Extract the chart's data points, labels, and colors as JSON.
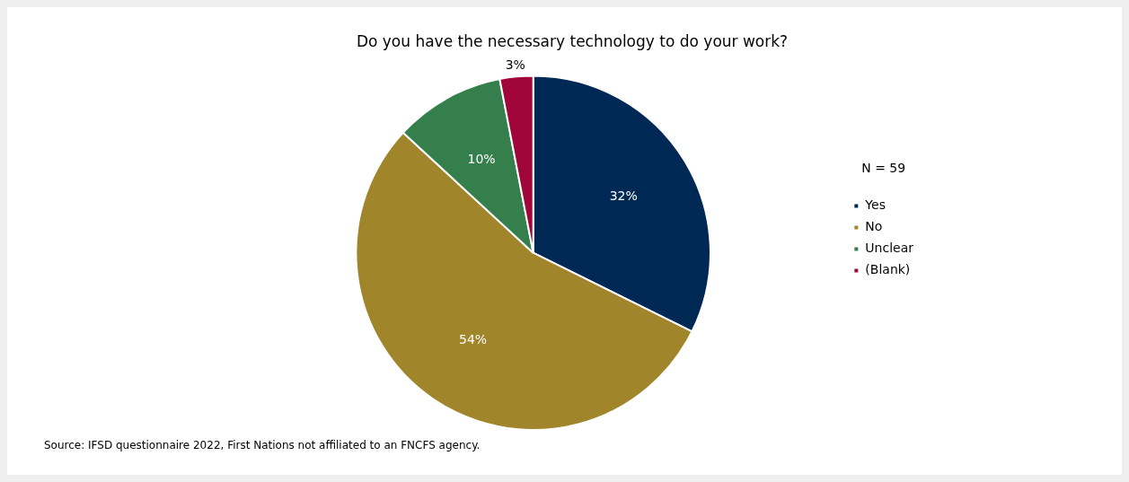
{
  "chart_data": {
    "type": "pie",
    "title": "Do you have the necessary technology to do your work?",
    "categories": [
      "Yes",
      "No",
      "Unclear",
      "(Blank)"
    ],
    "values": [
      32,
      54,
      10,
      3
    ],
    "colors": [
      "#002855",
      "#a0852b",
      "#347f4b",
      "#a1063a"
    ],
    "value_labels": [
      "32%",
      "54%",
      "10%",
      "3%"
    ],
    "legend": "right",
    "legend_title": "N = 59",
    "annotations": [
      "Source: IFSD questionnaire 2022, First Nations not affiliated to an FNCFS agency."
    ]
  }
}
